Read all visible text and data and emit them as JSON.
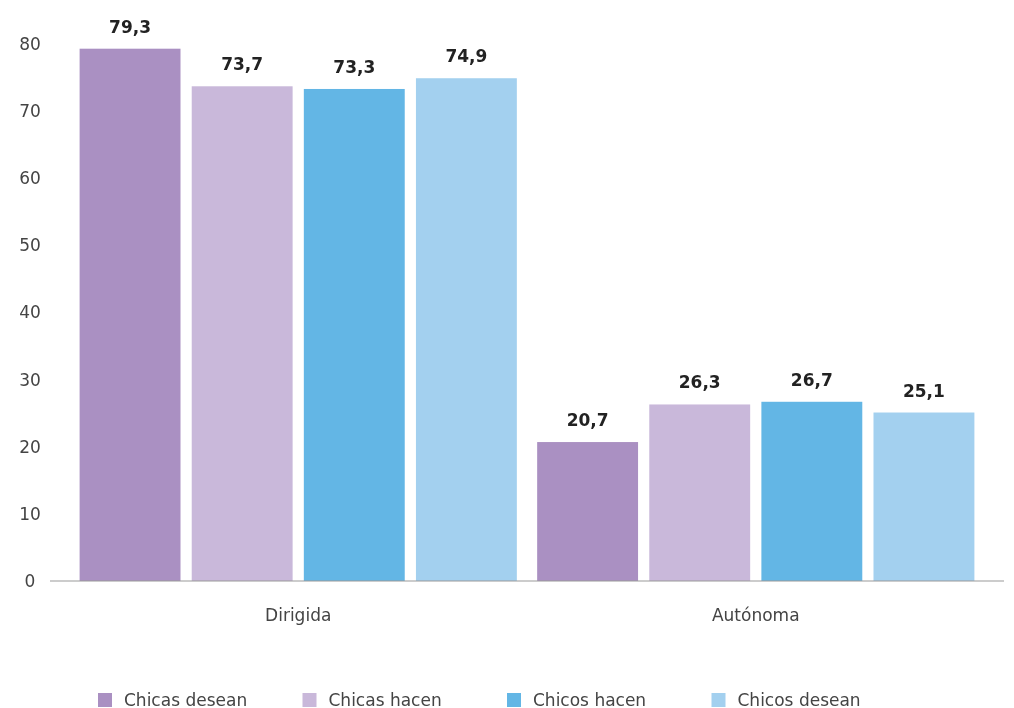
{
  "chart_data": {
    "type": "bar",
    "categories": [
      "Dirigida",
      "Autónoma"
    ],
    "series": [
      {
        "name": "Chicas desean",
        "color": "#aa90c2",
        "values": [
          79.3,
          20.7
        ],
        "value_labels": [
          "79,3",
          "20,7"
        ]
      },
      {
        "name": "Chicas hacen",
        "color": "#c9b8da",
        "values": [
          73.7,
          26.3
        ],
        "value_labels": [
          "73,7",
          "26,3"
        ]
      },
      {
        "name": "Chicos hacen",
        "color": "#63b6e5",
        "values": [
          73.3,
          26.7
        ],
        "value_labels": [
          "73,3",
          "26,7"
        ]
      },
      {
        "name": "Chicos desean",
        "color": "#a3d0ef",
        "values": [
          74.9,
          25.1
        ],
        "value_labels": [
          "74,9",
          "25,1"
        ]
      }
    ],
    "ylim": [
      0,
      80
    ],
    "yticks": [
      0,
      10,
      20,
      30,
      40,
      50,
      60,
      70,
      80
    ],
    "grid": false,
    "legend": "bottom"
  }
}
